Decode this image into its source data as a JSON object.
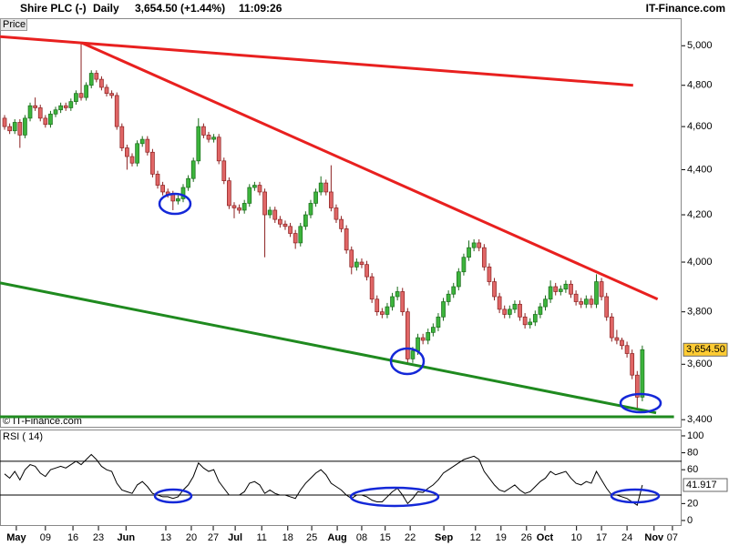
{
  "header": {
    "symbol": "Shire PLC (-)",
    "interval": "Daily",
    "quote": "3,654.50 (+1.44%)",
    "time": "11:09:26",
    "brand": "IT-Finance.com"
  },
  "chart_data": [
    {
      "type": "candlestick",
      "label": "Price",
      "credit": "© IT-Finance.com",
      "up_color": "#3cb43c",
      "down_color": "#e06666",
      "log": true,
      "xlim": [
        -0.9,
        132.7
      ],
      "ylim": [
        3372,
        5144
      ],
      "yticks": [
        {
          "value": 3400,
          "label": "3,400"
        },
        {
          "value": 3600,
          "label": "3,600"
        },
        {
          "value": 3800,
          "label": "3,800"
        },
        {
          "value": 4000,
          "label": "4,000"
        },
        {
          "value": 4200,
          "label": "4,200"
        },
        {
          "value": 4400,
          "label": "4,400"
        },
        {
          "value": 4600,
          "label": "4,600"
        },
        {
          "value": 4800,
          "label": "4,800"
        },
        {
          "value": 5000,
          "label": "5,000"
        }
      ],
      "last_label": "3,654.50",
      "open": [
        4640,
        4600,
        4580,
        4620,
        4560,
        4640,
        4700,
        4690,
        4640,
        4610,
        4660,
        4680,
        4700,
        4690,
        4720,
        4760,
        4740,
        4800,
        4860,
        4830,
        4790,
        4760,
        4750,
        4600,
        4500,
        4460,
        4430,
        4520,
        4540,
        4480,
        4380,
        4330,
        4300,
        4290,
        4260,
        4270,
        4320,
        4360,
        4440,
        4600,
        4560,
        4540,
        4550,
        4440,
        4350,
        4240,
        4230,
        4220,
        4250,
        4320,
        4330,
        4300,
        4200,
        4220,
        4180,
        4160,
        4150,
        4120,
        4080,
        4150,
        4200,
        4250,
        4300,
        4340,
        4300,
        4230,
        4180,
        4140,
        4050,
        3980,
        4000,
        3990,
        3940,
        3850,
        3800,
        3790,
        3820,
        3860,
        3880,
        3800,
        3620,
        3650,
        3700,
        3690,
        3720,
        3740,
        3780,
        3840,
        3870,
        3900,
        3960,
        4020,
        4060,
        4080,
        4060,
        3980,
        3920,
        3860,
        3810,
        3790,
        3810,
        3830,
        3780,
        3750,
        3760,
        3790,
        3820,
        3850,
        3900,
        3880,
        3890,
        3910,
        3870,
        3840,
        3830,
        3850,
        3830,
        3920,
        3860,
        3780,
        3700,
        3690,
        3670,
        3640,
        3560,
        3480
      ],
      "high": [
        4655,
        4615,
        4635,
        4635,
        4655,
        4715,
        4740,
        4705,
        4655,
        4675,
        4695,
        4715,
        4715,
        4735,
        4775,
        5010,
        4815,
        4875,
        4875,
        4845,
        4805,
        4775,
        4765,
        4615,
        4515,
        4475,
        4535,
        4555,
        4555,
        4495,
        4395,
        4345,
        4315,
        4305,
        4285,
        4335,
        4375,
        4455,
        4640,
        4615,
        4575,
        4565,
        4565,
        4455,
        4365,
        4255,
        4245,
        4265,
        4335,
        4345,
        4345,
        4315,
        4235,
        4235,
        4195,
        4175,
        4165,
        4135,
        4165,
        4215,
        4265,
        4315,
        4370,
        4355,
        4420,
        4245,
        4195,
        4155,
        4065,
        4015,
        4015,
        4005,
        3955,
        3865,
        3815,
        3835,
        3875,
        3900,
        3895,
        3815,
        3665,
        3715,
        3715,
        3735,
        3755,
        3795,
        3855,
        3885,
        3915,
        3975,
        4035,
        4090,
        4095,
        4095,
        4075,
        3995,
        3935,
        3875,
        3825,
        3825,
        3845,
        3845,
        3795,
        3775,
        3805,
        3835,
        3865,
        3925,
        3915,
        3905,
        3925,
        3925,
        3885,
        3855,
        3865,
        3865,
        3950,
        3935,
        3875,
        3795,
        3730,
        3700,
        3685,
        3655,
        3575,
        3670
      ],
      "low": [
        4585,
        4565,
        4565,
        4500,
        4545,
        4625,
        4675,
        4625,
        4595,
        4595,
        4645,
        4665,
        4675,
        4675,
        4705,
        4725,
        4725,
        4785,
        4815,
        4775,
        4745,
        4735,
        4585,
        4485,
        4400,
        4415,
        4415,
        4505,
        4465,
        4365,
        4315,
        4285,
        4275,
        4220,
        4245,
        4255,
        4305,
        4345,
        4425,
        4545,
        4525,
        4525,
        4425,
        4335,
        4225,
        4185,
        4205,
        4205,
        4235,
        4305,
        4285,
        4020,
        4185,
        4165,
        4145,
        4135,
        4105,
        4055,
        4065,
        4135,
        4185,
        4235,
        4285,
        4285,
        4215,
        4165,
        4125,
        4035,
        3950,
        3965,
        3975,
        3925,
        3835,
        3785,
        3775,
        3775,
        3805,
        3845,
        3785,
        3600,
        3605,
        3635,
        3675,
        3675,
        3705,
        3725,
        3765,
        3825,
        3855,
        3885,
        3945,
        4005,
        4045,
        4045,
        3965,
        3905,
        3845,
        3795,
        3775,
        3775,
        3795,
        3765,
        3735,
        3735,
        3745,
        3775,
        3805,
        3835,
        3865,
        3865,
        3875,
        3855,
        3825,
        3815,
        3815,
        3815,
        3815,
        3845,
        3765,
        3685,
        3675,
        3655,
        3625,
        3545,
        3440,
        3465
      ],
      "close": [
        4600,
        4580,
        4620,
        4560,
        4640,
        4700,
        4690,
        4640,
        4610,
        4660,
        4680,
        4700,
        4690,
        4720,
        4760,
        4740,
        4800,
        4860,
        4830,
        4790,
        4760,
        4750,
        4600,
        4500,
        4460,
        4430,
        4520,
        4540,
        4480,
        4380,
        4330,
        4300,
        4290,
        4260,
        4270,
        4320,
        4360,
        4440,
        4600,
        4560,
        4540,
        4550,
        4440,
        4350,
        4240,
        4230,
        4220,
        4250,
        4320,
        4330,
        4300,
        4200,
        4220,
        4180,
        4160,
        4150,
        4120,
        4080,
        4150,
        4200,
        4250,
        4300,
        4340,
        4300,
        4230,
        4180,
        4140,
        4050,
        3980,
        4000,
        3990,
        3940,
        3850,
        3800,
        3790,
        3820,
        3860,
        3880,
        3800,
        3620,
        3650,
        3700,
        3690,
        3720,
        3740,
        3780,
        3840,
        3870,
        3900,
        3960,
        4020,
        4060,
        4080,
        4060,
        3980,
        3920,
        3860,
        3810,
        3790,
        3810,
        3830,
        3780,
        3750,
        3760,
        3790,
        3820,
        3850,
        3900,
        3880,
        3890,
        3910,
        3870,
        3840,
        3830,
        3850,
        3830,
        3920,
        3860,
        3780,
        3700,
        3690,
        3670,
        3640,
        3560,
        3480,
        3654.5
      ],
      "trendlines": [
        {
          "color": "#e8201f",
          "x": [
            -0.9,
            123.2
          ],
          "values": [
            5047,
            4800
          ]
        },
        {
          "color": "#e8201f",
          "x": [
            15.2,
            128
          ],
          "values": [
            5014,
            3850
          ]
        },
        {
          "color": "#1f8a1f",
          "x": [
            -0.9,
            127.7
          ],
          "values": [
            3915,
            3424
          ]
        },
        {
          "color": "#1f8a1f",
          "x": [
            -0.9,
            131.2
          ],
          "values": [
            3410,
            3410
          ]
        }
      ]
    },
    {
      "type": "line",
      "label": "RSI ( 14)",
      "color": "#000000",
      "levels": [
        30,
        70
      ],
      "xlim": [
        -0.9,
        132.7
      ],
      "ylim": [
        -6.5,
        107.5
      ],
      "yticks": [
        0,
        20,
        60,
        80,
        100
      ],
      "last_label": "41.917",
      "values": [
        55,
        50,
        58,
        48,
        60,
        66,
        64,
        56,
        52,
        60,
        62,
        64,
        62,
        66,
        70,
        66,
        72,
        78,
        72,
        64,
        60,
        58,
        44,
        36,
        34,
        32,
        42,
        46,
        40,
        32,
        30,
        28,
        28,
        26,
        28,
        36,
        42,
        52,
        68,
        62,
        58,
        60,
        46,
        38,
        30,
        30,
        30,
        34,
        44,
        46,
        42,
        32,
        36,
        32,
        30,
        30,
        28,
        26,
        36,
        44,
        50,
        56,
        60,
        54,
        44,
        40,
        36,
        30,
        26,
        30,
        30,
        28,
        24,
        22,
        22,
        28,
        34,
        38,
        30,
        20,
        26,
        34,
        33,
        38,
        42,
        48,
        56,
        60,
        64,
        68,
        72,
        74,
        76,
        72,
        58,
        50,
        42,
        36,
        34,
        38,
        42,
        36,
        32,
        34,
        40,
        46,
        50,
        58,
        54,
        56,
        58,
        50,
        44,
        42,
        46,
        44,
        58,
        48,
        38,
        30,
        30,
        28,
        26,
        22,
        18,
        41.917
      ],
      "xticks": [
        {
          "value": 2.3,
          "label": "May"
        },
        {
          "value": 8,
          "label": "09"
        },
        {
          "value": 13.4,
          "label": "16"
        },
        {
          "value": 18.4,
          "label": "23"
        },
        {
          "value": 23.8,
          "label": "Jun"
        },
        {
          "value": 31.6,
          "label": "13"
        },
        {
          "value": 36.6,
          "label": "20"
        },
        {
          "value": 40.9,
          "label": "27"
        },
        {
          "value": 45.2,
          "label": "Jul"
        },
        {
          "value": 50.4,
          "label": "11"
        },
        {
          "value": 55.5,
          "label": "18"
        },
        {
          "value": 60.2,
          "label": "25"
        },
        {
          "value": 65.2,
          "label": "Aug"
        },
        {
          "value": 70,
          "label": "08"
        },
        {
          "value": 74.6,
          "label": "15"
        },
        {
          "value": 79.5,
          "label": "22"
        },
        {
          "value": 86.1,
          "label": "Sep"
        },
        {
          "value": 92.3,
          "label": "12"
        },
        {
          "value": 97.3,
          "label": "19"
        },
        {
          "value": 102.3,
          "label": "26"
        },
        {
          "value": 105.9,
          "label": "Oct"
        },
        {
          "value": 112.1,
          "label": "10"
        },
        {
          "value": 117,
          "label": "17"
        },
        {
          "value": 122,
          "label": "24"
        },
        {
          "value": 127.3,
          "label": "Nov"
        },
        {
          "value": 130.9,
          "label": "07"
        }
      ]
    }
  ]
}
